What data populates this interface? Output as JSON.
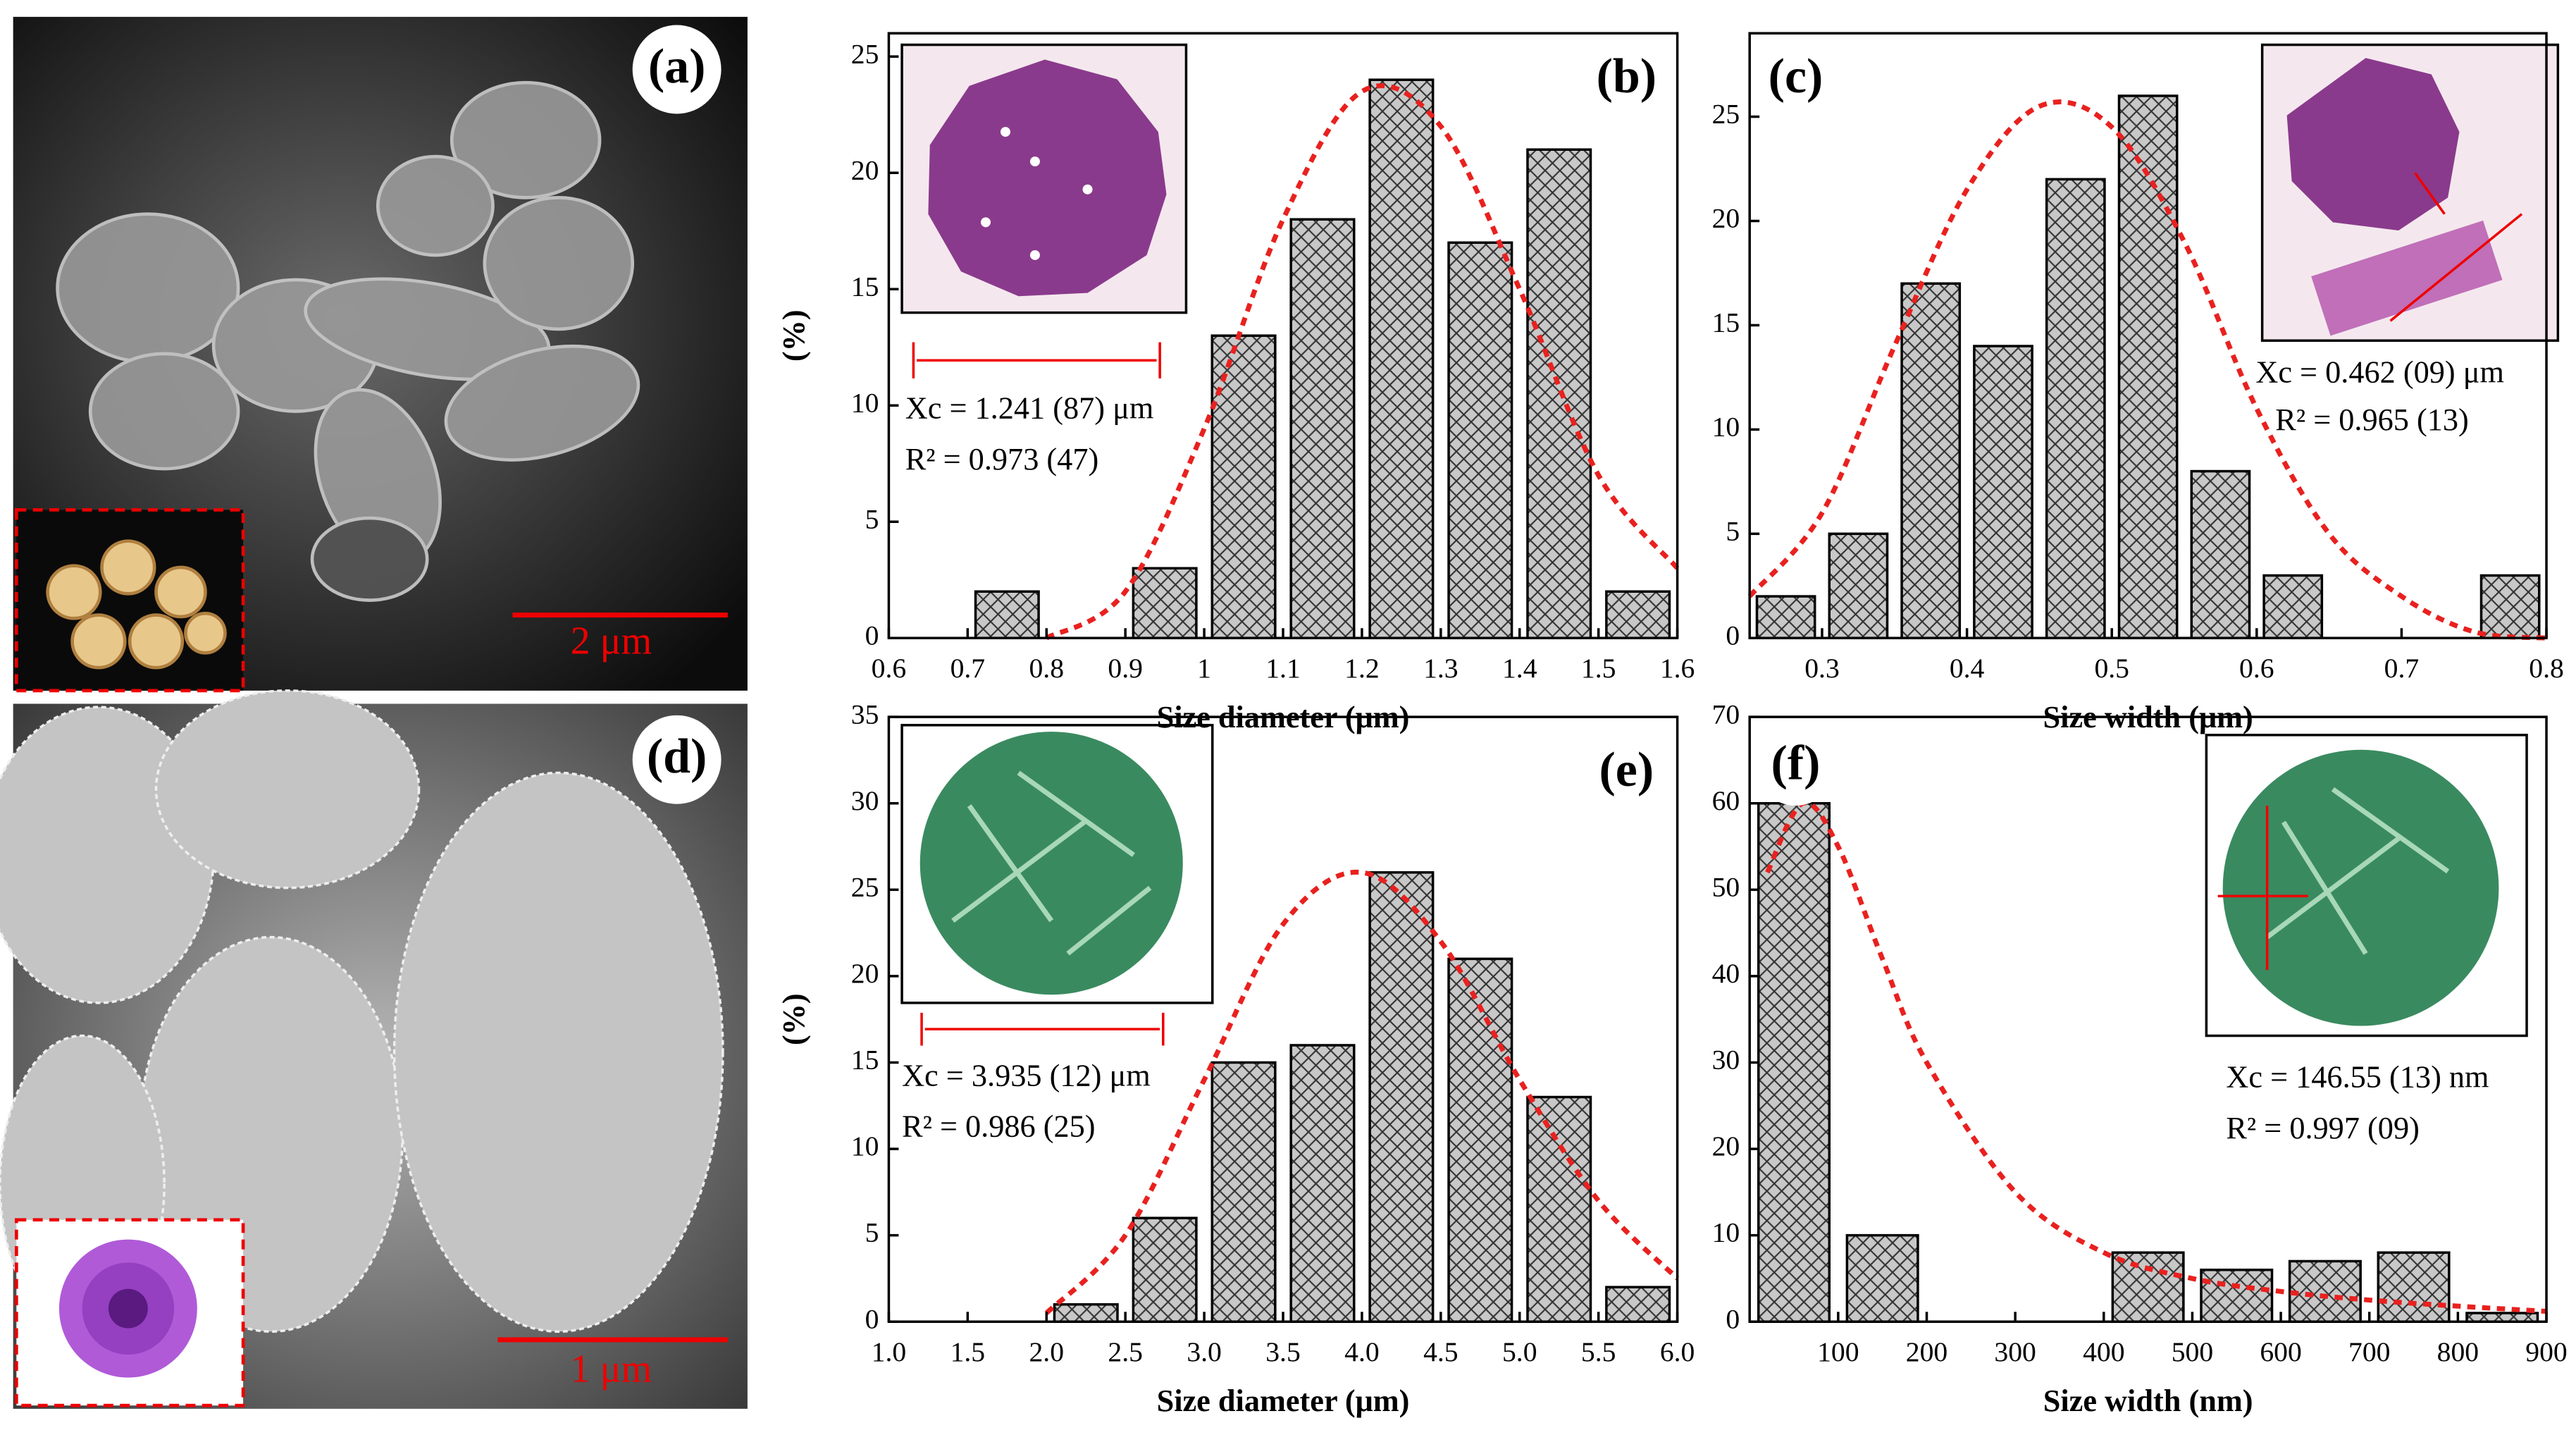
{
  "images": [
    {
      "label": "(a)",
      "scale_bar": "2 μm"
    },
    {
      "label": "(d)",
      "scale_bar": "1 μm"
    }
  ],
  "chart_data": [
    {
      "type": "histogram",
      "label": "(b)",
      "y_label": "(%)",
      "x_label": "Size diameter (μm)",
      "color": "#c8c8c8",
      "fit_color": "#e8211f",
      "bins": [
        0.7,
        0.8,
        0.9,
        1.0,
        1.1,
        1.2,
        1.3,
        1.4,
        1.5,
        1.6
      ],
      "values": [
        2,
        0,
        3,
        13,
        18,
        24,
        17,
        21,
        2
      ],
      "fit": {
        "x": [
          0.8,
          0.9,
          1.0,
          1.1,
          1.2,
          1.3,
          1.4,
          1.5,
          1.6
        ],
        "values": [
          0,
          2,
          9,
          18,
          23.5,
          22,
          15,
          7,
          3
        ]
      },
      "annotations": [
        "Xc = 1.241 (87) μm",
        "R² = 0.973 (47)"
      ],
      "xlim": [
        0.6,
        1.6
      ],
      "ylim": [
        0,
        26
      ],
      "xticks": [
        0.6,
        0.7,
        0.8,
        0.9,
        1.0,
        1.1,
        1.2,
        1.3,
        1.4,
        1.5,
        1.6
      ],
      "yticks": [
        0,
        5,
        10,
        15,
        20,
        25
      ]
    },
    {
      "type": "histogram",
      "label": "(c)",
      "x_label": "Size width (μm)",
      "color": "#c8c8c8",
      "fit_color": "#e8211f",
      "bins": [
        0.25,
        0.3,
        0.35,
        0.4,
        0.45,
        0.5,
        0.55,
        0.6,
        0.65,
        0.7,
        0.75,
        0.8
      ],
      "values": [
        2,
        5,
        17,
        14,
        22,
        26,
        8,
        3,
        0,
        0,
        3
      ],
      "fit": {
        "x": [
          0.25,
          0.3,
          0.35,
          0.4,
          0.45,
          0.5,
          0.55,
          0.6,
          0.65,
          0.7,
          0.75,
          0.8
        ],
        "values": [
          2,
          6,
          14,
          21.5,
          25.5,
          24.5,
          19,
          11,
          5,
          2,
          0.3,
          0
        ]
      },
      "annotations": [
        "Xc = 0.462 (09) μm",
        "R² = 0.965 (13)"
      ],
      "xlim": [
        0.25,
        0.8
      ],
      "ylim": [
        0,
        29
      ],
      "xticks": [
        0.3,
        0.4,
        0.5,
        0.6,
        0.7,
        0.8
      ],
      "yticks": [
        0,
        5,
        10,
        15,
        20,
        25
      ]
    },
    {
      "type": "histogram",
      "label": "(e)",
      "y_label": "(%)",
      "x_label": "Size diameter (μm)",
      "color": "#c8c8c8",
      "fit_color": "#e8211f",
      "bins": [
        2.0,
        2.5,
        3.0,
        3.5,
        4.0,
        4.5,
        5.0,
        5.5,
        6.0
      ],
      "values": [
        1,
        6,
        15,
        16,
        26,
        21,
        13,
        2
      ],
      "fit": {
        "x": [
          2.0,
          2.5,
          3.0,
          3.5,
          4.0,
          4.5,
          5.0,
          5.5,
          6.0
        ],
        "values": [
          0.5,
          5,
          14,
          23,
          26,
          22,
          14,
          7,
          2.5
        ]
      },
      "annotations": [
        "Xc = 3.935 (12) μm",
        "R² = 0.986 (25)"
      ],
      "xlim": [
        1,
        6
      ],
      "ylim": [
        0,
        35
      ],
      "xticks": [
        {
          "value": 1,
          "label": "1.0"
        },
        1.5,
        {
          "value": 2,
          "label": "2.0"
        },
        2.5,
        {
          "value": 3,
          "label": "3.0"
        },
        3.5,
        {
          "value": 4,
          "label": "4.0"
        },
        4.5,
        {
          "value": 5,
          "label": "5.0"
        },
        5.5,
        {
          "value": 6,
          "label": "6.0"
        }
      ],
      "yticks": [
        0,
        5,
        10,
        15,
        20,
        25,
        30,
        35
      ]
    },
    {
      "type": "histogram",
      "label": "(f)",
      "x_label": "Size width (nm)",
      "color": "#c8c8c8",
      "fit_color": "#e8211f",
      "bins": [
        0,
        100,
        200,
        300,
        400,
        500,
        600,
        700,
        800,
        900
      ],
      "values": [
        60,
        10,
        0,
        0,
        8,
        6,
        7,
        8,
        1
      ],
      "fit": {
        "x": [
          20,
          60,
          100,
          150,
          200,
          300,
          400,
          500,
          600,
          700,
          800,
          900
        ],
        "values": [
          52,
          60,
          55,
          42,
          30,
          15,
          8,
          5,
          3.5,
          2.5,
          1.8,
          1.2
        ]
      },
      "annotations": [
        "Xc = 146.55 (13) nm",
        "R² = 0.997 (09)"
      ],
      "xlim": [
        0,
        900
      ],
      "ylim": [
        0,
        70
      ],
      "xticks": [
        100,
        200,
        300,
        400,
        500,
        600,
        700,
        800,
        900
      ],
      "yticks": [
        0,
        10,
        20,
        30,
        40,
        50,
        60,
        70
      ]
    }
  ]
}
